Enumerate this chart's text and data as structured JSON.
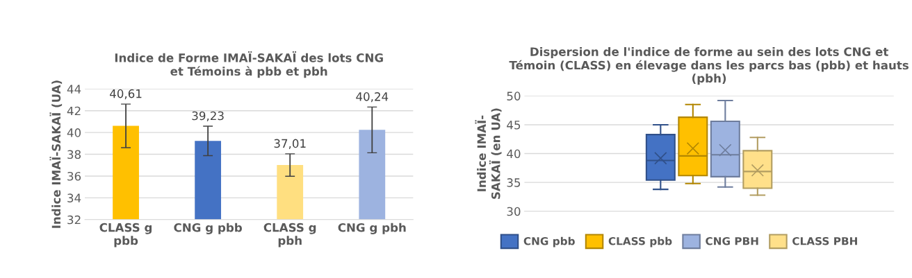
{
  "chart_data": [
    {
      "type": "bar",
      "title": "Indice de Forme IMAÏ-SAKAÏ des lots CNG\net Témoins à pbb et pbh",
      "ylabel": "Indice IMAÏ-SAKAÏ (UA)",
      "categories": [
        "CLASS g\npbb",
        "CNG g pbb",
        "CLASS g\npbh",
        "CNG g pbh"
      ],
      "values": [
        40.61,
        39.23,
        37.01,
        40.24
      ],
      "colors": [
        "#ffc000",
        "#4472c4",
        "#ffdf80",
        "#9db3e0"
      ],
      "errors": [
        2.0,
        1.35,
        1.03,
        2.1
      ],
      "value_labels": [
        "40,61",
        "39,23",
        "37,01",
        "40,24"
      ],
      "ylim": [
        32,
        44
      ],
      "yticks": [
        32,
        34,
        36,
        38,
        40,
        42,
        44
      ],
      "grid": "y"
    },
    {
      "type": "box",
      "title": "Dispersion de l'indice de forme au sein des lots CNG et\nTémoin (CLASS) en élevage dans les parcs bas (pbb) et hauts\n(pbh)",
      "ylabel": "Indice IMAÏ-\nSAKAÏ (en UA)",
      "categories": [
        null
      ],
      "series": [
        {
          "name": "CNG pbb",
          "color": "#4472c4",
          "boxes": [
            {
              "low": 33.8,
              "q1": 35.4,
              "median": 38.8,
              "q3": 43.3,
              "high": 45.0,
              "mean": 39.2
            }
          ]
        },
        {
          "name": "CLASS pbb",
          "color": "#ffc000",
          "boxes": [
            {
              "low": 34.8,
              "q1": 36.2,
              "median": 39.6,
              "q3": 46.3,
              "high": 48.5,
              "mean": 40.9
            }
          ]
        },
        {
          "name": "CNG PBH",
          "color": "#9db3e0",
          "boxes": [
            {
              "low": 34.2,
              "q1": 36.0,
              "median": 39.8,
              "q3": 45.6,
              "high": 49.2,
              "mean": 40.6
            }
          ]
        },
        {
          "name": "CLASS PBH",
          "color": "#ffe08a",
          "boxes": [
            {
              "low": 32.8,
              "q1": 34.0,
              "median": 36.9,
              "q3": 40.5,
              "high": 42.8,
              "mean": 37.1
            }
          ]
        }
      ],
      "ylim": [
        30,
        50
      ],
      "yticks": [
        30,
        35,
        40,
        45,
        50
      ],
      "grid": "y",
      "legend": "bottom"
    }
  ]
}
